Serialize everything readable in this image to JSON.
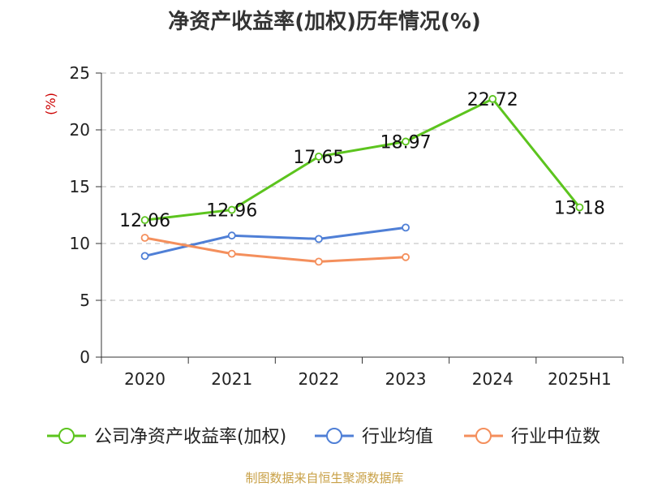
{
  "title": "净资产收益率(加权)历年情况(%)",
  "source": "制图数据来自恒生聚源数据库",
  "colors": {
    "company": "#5cc41e",
    "industry_avg": "#4f7fd6",
    "industry_median": "#f48f5c",
    "grid": "#bbbbbb",
    "axis": "#333333"
  },
  "chart_data": {
    "type": "line",
    "title": "净资产收益率(加权)历年情况(%)",
    "ylabel": "(%)",
    "xlabel": "",
    "categories": [
      "2020",
      "2021",
      "2022",
      "2023",
      "2024",
      "2025H1"
    ],
    "ylim": [
      0,
      25
    ],
    "yticks": [
      0,
      5,
      10,
      15,
      20,
      25
    ],
    "grid": true,
    "legend_position": "bottom",
    "series": [
      {
        "name": "公司净资产收益率(加权)",
        "values": [
          12.06,
          12.96,
          17.65,
          18.97,
          22.72,
          13.18
        ],
        "data_labels": [
          "12.06",
          "12.96",
          "17.65",
          "18.97",
          "22.72",
          "13.18"
        ]
      },
      {
        "name": "行业均值",
        "values": [
          8.9,
          10.7,
          10.4,
          11.4,
          null,
          null
        ]
      },
      {
        "name": "行业中位数",
        "values": [
          10.5,
          9.1,
          8.4,
          8.8,
          null,
          null
        ]
      }
    ]
  }
}
